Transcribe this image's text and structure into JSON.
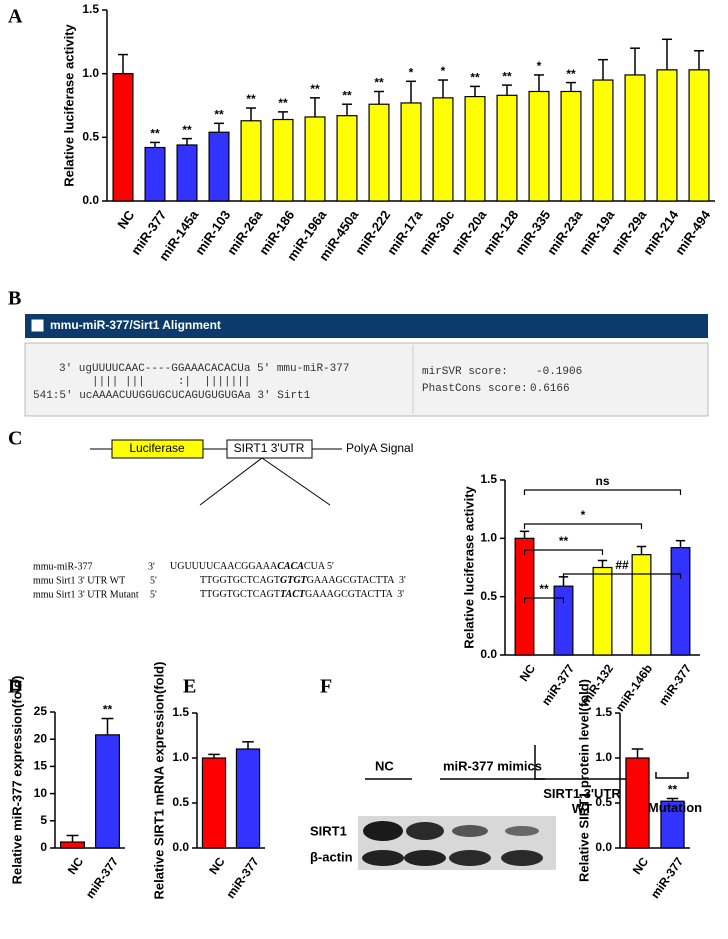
{
  "chart_data": [
    {
      "type": "bar",
      "panel": "A",
      "ylabel": "Relative luciferase activity",
      "categories": [
        "NC",
        "miR-377",
        "miR-145a",
        "miR-103",
        "miR-26a",
        "miR-186",
        "miR-196a",
        "miR-450a",
        "miR-222",
        "miR-17a",
        "miR-30c",
        "miR-20a",
        "miR-128",
        "miR-335",
        "miR-23a",
        "miR-19a",
        "miR-29a",
        "miR-214",
        "miR-494"
      ],
      "values": [
        1.0,
        0.42,
        0.44,
        0.54,
        0.63,
        0.64,
        0.66,
        0.67,
        0.76,
        0.77,
        0.81,
        0.82,
        0.83,
        0.86,
        0.86,
        0.95,
        0.99,
        1.03,
        1.03
      ],
      "errors": [
        0.15,
        0.04,
        0.05,
        0.07,
        0.1,
        0.06,
        0.15,
        0.09,
        0.1,
        0.17,
        0.14,
        0.08,
        0.08,
        0.13,
        0.07,
        0.16,
        0.21,
        0.24,
        0.15
      ],
      "annotations": [
        null,
        "**",
        "**",
        "**",
        "**",
        "**",
        "**",
        "**",
        "**",
        "*",
        "*",
        "**",
        "**",
        "*",
        "**",
        null,
        null,
        null,
        null
      ],
      "colors": [
        "#ff0000",
        "#3333ff",
        "#3333ff",
        "#3333ff",
        "#ffff00",
        "#ffff00",
        "#ffff00",
        "#ffff00",
        "#ffff00",
        "#ffff00",
        "#ffff00",
        "#ffff00",
        "#ffff00",
        "#ffff00",
        "#ffff00",
        "#ffff00",
        "#ffff00",
        "#ffff00",
        "#ffff00"
      ],
      "ylim": [
        0,
        1.5
      ],
      "yticks": [
        {
          "value": 0,
          "label": "0.0"
        },
        0.5,
        {
          "value": 1,
          "label": "1.0"
        },
        1.5
      ]
    },
    {
      "type": "bar",
      "panel": "C",
      "ylabel": "Relative luciferase activity",
      "categories": [
        "NC",
        "miR-377",
        "miR-132",
        "miR-146b",
        "miR-377"
      ],
      "values": [
        1.0,
        0.59,
        0.75,
        0.86,
        0.92
      ],
      "errors": [
        0.06,
        0.08,
        0.06,
        0.07,
        0.06
      ],
      "colors": [
        "#ff0000",
        "#3333ff",
        "#ffff00",
        "#ffff00",
        "#3333ff"
      ],
      "comparison_labels": [
        "ns",
        "*",
        "**",
        "##",
        "**"
      ],
      "group_labels": [
        "SIRT1 3'UTR WT",
        "Mutation"
      ],
      "ylim": [
        0,
        1.5
      ],
      "yticks": [
        {
          "value": 0,
          "label": "0.0"
        },
        0.5,
        {
          "value": 1,
          "label": "1.0"
        },
        1.5
      ]
    },
    {
      "type": "bar",
      "panel": "D",
      "ylabel": "Relative miR-377 expression(fold)",
      "categories": [
        "NC",
        "miR-377"
      ],
      "values": [
        1.1,
        20.8
      ],
      "errors": [
        1.2,
        3.0
      ],
      "annotations": [
        null,
        "**"
      ],
      "colors": [
        "#ff0000",
        "#3333ff"
      ],
      "ylim": [
        0,
        25
      ],
      "yticks": [
        0,
        5,
        10,
        15,
        20,
        25
      ]
    },
    {
      "type": "bar",
      "panel": "E",
      "ylabel": "Relative SIRT1 mRNA expression(fold)",
      "categories": [
        "NC",
        "miR-377"
      ],
      "values": [
        1.0,
        1.1
      ],
      "errors": [
        0.04,
        0.08
      ],
      "colors": [
        "#ff0000",
        "#3333ff"
      ],
      "ylim": [
        0,
        1.5
      ],
      "yticks": [
        {
          "value": 0,
          "label": "0.0"
        },
        0.5,
        {
          "value": 1,
          "label": "1.0"
        },
        1.5
      ]
    },
    {
      "type": "bar",
      "panel": "F",
      "ylabel": "Relative SIRT1 protein level(fold)",
      "categories": [
        "NC",
        "miR-377"
      ],
      "values": [
        1.0,
        0.52
      ],
      "errors": [
        0.1,
        0.03
      ],
      "annotations": [
        null,
        "**"
      ],
      "colors": [
        "#ff0000",
        "#3333ff"
      ],
      "ylim": [
        0,
        1.5
      ],
      "yticks": [
        {
          "value": 0,
          "label": "0.0"
        },
        0.5,
        {
          "value": 1,
          "label": "1.0"
        },
        1.5
      ]
    }
  ],
  "alignment": {
    "panel": "B",
    "title": "mmu-miR-377/Sirt1 Alignment",
    "lines": [
      "3' ugUUUUCAAC----GGAAACACACUa 5' mmu-miR-377",
      "|||| |||     :|  |||||||",
      "541:5' ucAAAACUUGGUGCUCAGUGUGUGAa 3' Sirt1"
    ],
    "scores": [
      {
        "label": "mirSVR score:",
        "value": -0.1906
      },
      {
        "label": "PhastCons score:",
        "value": 0.6166
      }
    ]
  },
  "diagram": {
    "luciferase": "Luciferase",
    "utr": "SIRT1 3'UTR",
    "polya": "PolyA Signal",
    "sequences": [
      {
        "name": "mmu-miR-377",
        "end": "3'",
        "pre": "UGUUUUCAACGGAAA",
        "site": "CACA",
        "post": "CUA 5'"
      },
      {
        "name": "mmu Sirt1 3' UTR WT",
        "end": "5'",
        "pre": "TTGGTGCTCAGT",
        "site": "GTGT",
        "post": "GAAAGCGTACTTA  3'"
      },
      {
        "name": "mmu Sirt1 3' UTR Mutant",
        "end": "5'",
        "pre": "TTGGTGCTCAGT",
        "site": "TACT",
        "post": "GAAAGCGTACTTA  3'"
      }
    ]
  },
  "blot": {
    "lanes": [
      "NC",
      "miR-377 mimics"
    ],
    "rows": [
      "SIRT1",
      "β-actin"
    ]
  }
}
